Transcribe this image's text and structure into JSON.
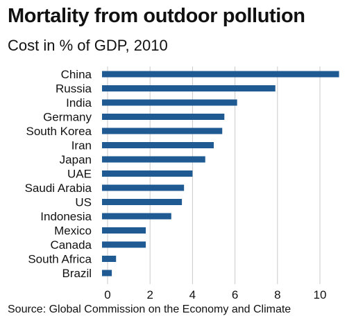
{
  "chart_data": {
    "type": "bar",
    "orientation": "horizontal",
    "title": "Mortality from outdoor pollution",
    "subtitle": "Cost in % of GDP, 2010",
    "source": "Source: Global Commission on the Economy and Climate",
    "categories": [
      "China",
      "Russia",
      "India",
      "Germany",
      "South Korea",
      "Iran",
      "Japan",
      "UAE",
      "Saudi Arabia",
      "US",
      "Indonesia",
      "Mexico",
      "Canada",
      "South Africa",
      "Brazil"
    ],
    "values": [
      10.9,
      7.9,
      6.1,
      5.5,
      5.4,
      5.0,
      4.6,
      4.0,
      3.6,
      3.5,
      3.0,
      1.8,
      1.8,
      0.4,
      0.2
    ],
    "xticks": [
      "0",
      "2",
      "4",
      "6",
      "8",
      "10"
    ],
    "xlim": [
      -0.3,
      11
    ],
    "grid": true,
    "bar_color": "#1f5a93"
  }
}
